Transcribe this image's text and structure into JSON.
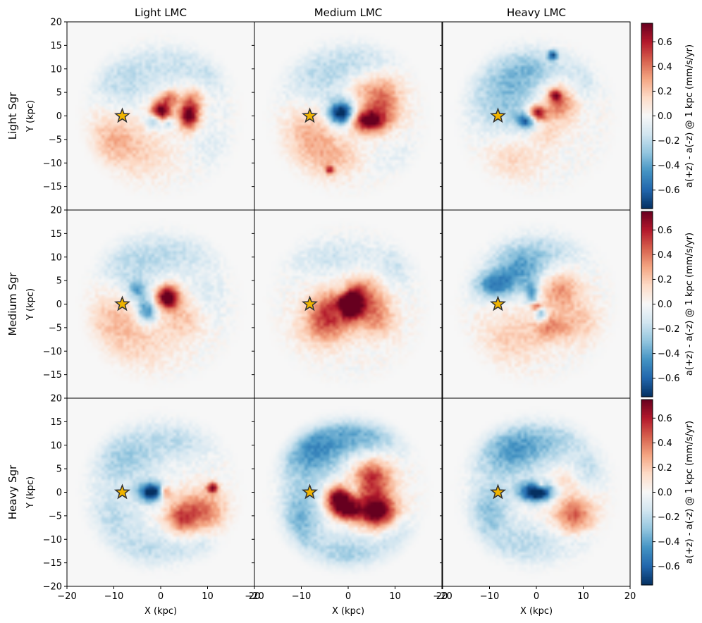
{
  "chart_data": {
    "type": "heatmap",
    "grid": "3x3 panel grid",
    "column_titles": [
      "Light LMC",
      "Medium LMC",
      "Heavy LMC"
    ],
    "row_titles": [
      "Light Sgr",
      "Medium Sgr",
      "Heavy Sgr"
    ],
    "xlabel": "X (kpc)",
    "ylabel": "Y (kpc)",
    "xlim": [
      -20,
      20
    ],
    "ylim": [
      -20,
      20
    ],
    "x_ticks": [
      -20,
      -10,
      0,
      10,
      20
    ],
    "x_tick_labels": [
      "−20",
      "−10",
      "0",
      "10",
      "20"
    ],
    "y_ticks": [
      -15,
      -10,
      -5,
      0,
      5,
      10,
      15,
      20
    ],
    "y_tick_labels": [
      "−15",
      "−10",
      "−5",
      "0",
      "5",
      "10",
      "15",
      "20"
    ],
    "bottom_row_y_tick_labels": [
      "−20",
      "−15",
      "−10",
      "−5",
      "0",
      "5",
      "10",
      "15",
      "20"
    ],
    "colorbar": {
      "label": "a(+z) - a(-z) @ 1 kpc (mm/s/yr)",
      "colormap": "RdBu_r",
      "range": [
        -0.75,
        0.75
      ],
      "ticks": [
        -0.6,
        -0.4,
        -0.2,
        0.0,
        0.2,
        0.4,
        0.6
      ],
      "tick_labels": [
        "−0.6",
        "−0.4",
        "−0.2",
        "0.0",
        "0.2",
        "0.4",
        "0.6"
      ]
    },
    "sun_marker": {
      "x": -8.2,
      "y": 0,
      "symbol": "star",
      "color": "#f0b400"
    },
    "panels": [
      {
        "row": 0,
        "col": 0,
        "name": "Light Sgr / Light LMC",
        "features": [
          {
            "x": 0,
            "y": 1,
            "sx": 1.6,
            "sy": 1.6,
            "v": 0.85
          },
          {
            "x": 6,
            "y": 0,
            "sx": 1.5,
            "sy": 2,
            "v": 0.8
          },
          {
            "x": 2,
            "y": 4,
            "sx": 1.2,
            "sy": 1.2,
            "v": 0.4
          },
          {
            "x": 7,
            "y": 4,
            "sx": 2,
            "sy": 2,
            "v": 0.3
          },
          {
            "x": -1.5,
            "y": -1,
            "sx": 1.2,
            "sy": 1.2,
            "v": -0.45
          },
          {
            "x": 1.5,
            "y": -1.5,
            "sx": 1,
            "sy": 1,
            "v": -0.3
          },
          {
            "x": -10,
            "y": -5,
            "sx": 4,
            "sy": 4,
            "v": 0.25
          },
          {
            "x": -3,
            "y": -8,
            "sx": 4,
            "sy": 4,
            "v": 0.12
          },
          {
            "x": -8,
            "y": 7,
            "sx": 5,
            "sy": 4,
            "v": -0.18
          },
          {
            "x": 3,
            "y": 11,
            "sx": 6,
            "sy": 3,
            "v": -0.14
          },
          {
            "x": 10,
            "y": 7,
            "sx": 3,
            "sy": 3,
            "v": -0.12
          },
          {
            "x": 11,
            "y": -6,
            "sx": 3,
            "sy": 4,
            "v": -0.08
          }
        ]
      },
      {
        "row": 0,
        "col": 1,
        "name": "Light Sgr / Medium LMC",
        "features": [
          {
            "x": -1.5,
            "y": 0.5,
            "sx": 2,
            "sy": 1.8,
            "v": -0.85
          },
          {
            "x": 4,
            "y": -1,
            "sx": 2.5,
            "sy": 1.6,
            "v": 0.7
          },
          {
            "x": 7,
            "y": 3,
            "sx": 3,
            "sy": 4,
            "v": 0.45
          },
          {
            "x": 2,
            "y": 6,
            "sx": 2,
            "sy": 2,
            "v": 0.15
          },
          {
            "x": -8,
            "y": -4,
            "sx": 4,
            "sy": 4,
            "v": 0.25
          },
          {
            "x": -3,
            "y": -9,
            "sx": 4,
            "sy": 3,
            "v": 0.2
          },
          {
            "x": -4,
            "y": -11.5,
            "sx": 0.6,
            "sy": 0.6,
            "v": 0.5
          },
          {
            "x": -6,
            "y": 8,
            "sx": 6,
            "sy": 4,
            "v": -0.18
          },
          {
            "x": 4,
            "y": 12,
            "sx": 6,
            "sy": 3,
            "v": -0.14
          },
          {
            "x": 10,
            "y": -8,
            "sx": 4,
            "sy": 3,
            "v": -0.06
          }
        ]
      },
      {
        "row": 0,
        "col": 2,
        "name": "Light Sgr / Heavy LMC",
        "features": [
          {
            "x": 0,
            "y": 0.5,
            "sx": 1.4,
            "sy": 1.2,
            "v": 0.8
          },
          {
            "x": -2,
            "y": -1,
            "sx": 1.5,
            "sy": 1.2,
            "v": -0.6
          },
          {
            "x": 5,
            "y": 3,
            "sx": 2.5,
            "sy": 3,
            "v": 0.45
          },
          {
            "x": 4,
            "y": 4.5,
            "sx": 0.8,
            "sy": 0.8,
            "v": 0.5
          },
          {
            "x": 2,
            "y": -4,
            "sx": 2,
            "sy": 2,
            "v": 0.15
          },
          {
            "x": -7,
            "y": 4,
            "sx": 5,
            "sy": 5,
            "v": -0.3
          },
          {
            "x": -1,
            "y": 10,
            "sx": 5,
            "sy": 3,
            "v": -0.25
          },
          {
            "x": 3.5,
            "y": 13,
            "sx": 0.7,
            "sy": 0.7,
            "v": -0.6
          },
          {
            "x": -5,
            "y": -9,
            "sx": 4,
            "sy": 3,
            "v": 0.15
          },
          {
            "x": 9,
            "y": 7,
            "sx": 3,
            "sy": 3,
            "v": -0.15
          }
        ]
      },
      {
        "row": 1,
        "col": 0,
        "name": "Medium Sgr / Light LMC",
        "features": [
          {
            "x": 1.5,
            "y": 1.5,
            "sx": 1.8,
            "sy": 1.8,
            "v": 0.85
          },
          {
            "x": -3,
            "y": -1.5,
            "sx": 1.5,
            "sy": 1.8,
            "v": -0.55
          },
          {
            "x": -5,
            "y": 3,
            "sx": 1.5,
            "sy": 1.5,
            "v": -0.35
          },
          {
            "x": 5,
            "y": -3,
            "sx": 3,
            "sy": 3,
            "v": 0.2
          },
          {
            "x": -10,
            "y": -3,
            "sx": 4,
            "sy": 4,
            "v": 0.2
          },
          {
            "x": -4,
            "y": -8,
            "sx": 5,
            "sy": 4,
            "v": 0.15
          },
          {
            "x": -6,
            "y": 8,
            "sx": 5,
            "sy": 4,
            "v": -0.18
          },
          {
            "x": 4,
            "y": 11,
            "sx": 6,
            "sy": 3,
            "v": -0.15
          },
          {
            "x": 10,
            "y": 2,
            "sx": 3,
            "sy": 4,
            "v": -0.1
          }
        ]
      },
      {
        "row": 1,
        "col": 1,
        "name": "Medium Sgr / Medium LMC",
        "features": [
          {
            "x": 0.5,
            "y": 0,
            "sx": 1.6,
            "sy": 2,
            "v": 0.95
          },
          {
            "x": 3,
            "y": 2,
            "sx": 3,
            "sy": 3,
            "v": 0.4
          },
          {
            "x": -4,
            "y": -1,
            "sx": 3,
            "sy": 3,
            "v": 0.4
          },
          {
            "x": -5,
            "y": -5,
            "sx": 4,
            "sy": 3,
            "v": 0.3
          },
          {
            "x": 6,
            "y": -3,
            "sx": 3,
            "sy": 3,
            "v": 0.3
          },
          {
            "x": -1,
            "y": 3,
            "sx": 1.2,
            "sy": 1,
            "v": -0.2
          },
          {
            "x": -2,
            "y": -2,
            "sx": 0.8,
            "sy": 0.8,
            "v": -0.15
          },
          {
            "x": -3,
            "y": 10,
            "sx": 7,
            "sy": 3,
            "v": -0.14
          },
          {
            "x": 10,
            "y": 8,
            "sx": 3,
            "sy": 3,
            "v": -0.12
          }
        ]
      },
      {
        "row": 1,
        "col": 2,
        "name": "Medium Sgr / Heavy LMC",
        "features": [
          {
            "x": 0,
            "y": -0.5,
            "sx": 1,
            "sy": 0.6,
            "v": 0.6
          },
          {
            "x": -1,
            "y": 2,
            "sx": 1,
            "sy": 2,
            "v": -0.4
          },
          {
            "x": 1,
            "y": -2,
            "sx": 0.8,
            "sy": 1.2,
            "v": -0.5
          },
          {
            "x": -9,
            "y": 4,
            "sx": 3,
            "sy": 2,
            "v": -0.45
          },
          {
            "x": -4,
            "y": 7,
            "sx": 4,
            "sy": 3,
            "v": -0.35
          },
          {
            "x": 5,
            "y": 3,
            "sx": 3,
            "sy": 3,
            "v": 0.35
          },
          {
            "x": 3,
            "y": -5,
            "sx": 2.5,
            "sy": 2,
            "v": 0.3
          },
          {
            "x": -5,
            "y": -7,
            "sx": 5,
            "sy": 4,
            "v": 0.18
          },
          {
            "x": 1,
            "y": 11,
            "sx": 6,
            "sy": 3,
            "v": -0.2
          },
          {
            "x": 9,
            "y": -4,
            "sx": 3,
            "sy": 3,
            "v": 0.2
          }
        ]
      },
      {
        "row": 2,
        "col": 0,
        "name": "Heavy Sgr / Light LMC",
        "features": [
          {
            "x": -2,
            "y": 0,
            "sx": 1.8,
            "sy": 1.4,
            "v": -0.85
          },
          {
            "x": 1,
            "y": 0,
            "sx": 0.8,
            "sy": 1,
            "v": 0.45
          },
          {
            "x": 8,
            "y": -4,
            "sx": 4,
            "sy": 3,
            "v": 0.45
          },
          {
            "x": 11,
            "y": 1,
            "sx": 0.8,
            "sy": 0.8,
            "v": 0.7
          },
          {
            "x": 4,
            "y": -6,
            "sx": 2,
            "sy": 2,
            "v": 0.3
          },
          {
            "x": -8,
            "y": 7,
            "sx": 5,
            "sy": 4,
            "v": -0.25
          },
          {
            "x": -10,
            "y": -5,
            "sx": 4,
            "sy": 4,
            "v": -0.18
          },
          {
            "x": -2,
            "y": -12,
            "sx": 6,
            "sy": 3,
            "v": -0.18
          },
          {
            "x": 3,
            "y": 11,
            "sx": 6,
            "sy": 3,
            "v": -0.18
          },
          {
            "x": 9,
            "y": -12,
            "sx": 3,
            "sy": 2,
            "v": -0.12
          }
        ]
      },
      {
        "row": 2,
        "col": 1,
        "name": "Heavy Sgr / Medium LMC",
        "features": [
          {
            "x": -2,
            "y": -1.5,
            "sx": 2,
            "sy": 2,
            "v": 0.85
          },
          {
            "x": 6,
            "y": -4,
            "sx": 3,
            "sy": 2.5,
            "v": 0.85
          },
          {
            "x": 5,
            "y": 3,
            "sx": 3,
            "sy": 3,
            "v": 0.55
          },
          {
            "x": 0,
            "y": -4,
            "sx": 2,
            "sy": 1.5,
            "v": 0.5
          },
          {
            "x": 1,
            "y": 1,
            "sx": 1,
            "sy": 1,
            "v": -0.2
          },
          {
            "x": -8,
            "y": 8,
            "sx": 5,
            "sy": 4,
            "v": -0.4
          },
          {
            "x": -10,
            "y": -5,
            "sx": 3,
            "sy": 5,
            "v": -0.35
          },
          {
            "x": 2,
            "y": 12,
            "sx": 7,
            "sy": 3,
            "v": -0.35
          },
          {
            "x": 0,
            "y": -13,
            "sx": 6,
            "sy": 3,
            "v": -0.25
          },
          {
            "x": 11,
            "y": -9,
            "sx": 3,
            "sy": 3,
            "v": -0.15
          }
        ]
      },
      {
        "row": 2,
        "col": 2,
        "name": "Heavy Sgr / Heavy LMC",
        "features": [
          {
            "x": 0,
            "y": 0,
            "sx": 2.5,
            "sy": 1.4,
            "v": -0.9
          },
          {
            "x": 1,
            "y": 1.5,
            "sx": 0.6,
            "sy": 0.6,
            "v": 0.35
          },
          {
            "x": 8,
            "y": -5,
            "sx": 3,
            "sy": 3,
            "v": 0.45
          },
          {
            "x": 6,
            "y": 3,
            "sx": 2,
            "sy": 2,
            "v": 0.15
          },
          {
            "x": -6,
            "y": 8,
            "sx": 5,
            "sy": 4,
            "v": -0.35
          },
          {
            "x": -10,
            "y": -4,
            "sx": 3,
            "sy": 4,
            "v": -0.3
          },
          {
            "x": 2,
            "y": 11,
            "sx": 6,
            "sy": 3,
            "v": -0.25
          },
          {
            "x": -2,
            "y": -11,
            "sx": 6,
            "sy": 3,
            "v": -0.2
          },
          {
            "x": 11,
            "y": 5,
            "sx": 3,
            "sy": 3,
            "v": -0.15
          },
          {
            "x": 10,
            "y": -10,
            "sx": 3,
            "sy": 2,
            "v": -0.1
          }
        ]
      }
    ]
  }
}
